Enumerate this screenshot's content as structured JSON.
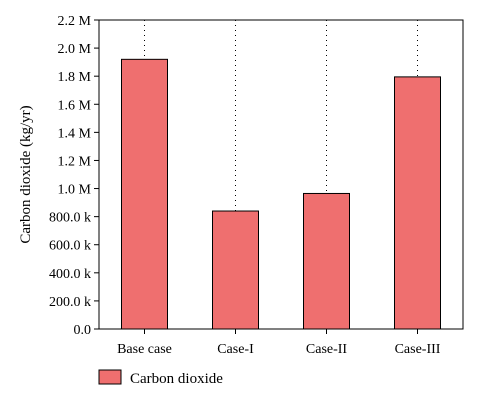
{
  "chart_data": {
    "type": "bar",
    "categories": [
      "Base case",
      "Case-I",
      "Case-II",
      "Case-III"
    ],
    "series": [
      {
        "name": "Carbon dioxide",
        "values": [
          1920000,
          840000,
          965000,
          1795000
        ]
      }
    ],
    "ylabel": "Carbon dioxide (kg/yr)",
    "xlabel": "",
    "ylim": [
      0,
      2200000
    ],
    "y_ticks": [
      {
        "value": 0,
        "label": "0.0"
      },
      {
        "value": 200000,
        "label": "200.0 k"
      },
      {
        "value": 400000,
        "label": "400.0 k"
      },
      {
        "value": 600000,
        "label": "600.0 k"
      },
      {
        "value": 800000,
        "label": "800.0 k"
      },
      {
        "value": 1000000,
        "label": "1.0 M"
      },
      {
        "value": 1200000,
        "label": "1.2 M"
      },
      {
        "value": 1400000,
        "label": "1.4 M"
      },
      {
        "value": 1600000,
        "label": "1.6 M"
      },
      {
        "value": 1800000,
        "label": "1.8 M"
      },
      {
        "value": 2000000,
        "label": "2.0 M"
      },
      {
        "value": 2200000,
        "label": "2.2 M"
      }
    ],
    "grid": "vertical dotted lines at categories",
    "legend": {
      "placement": "bottom-left",
      "entries": [
        "Carbon dioxide"
      ]
    },
    "colors": {
      "bar_fill": "#ef6f6f",
      "bar_stroke": "#000000",
      "axis": "#000000",
      "grid": "#000000"
    }
  }
}
